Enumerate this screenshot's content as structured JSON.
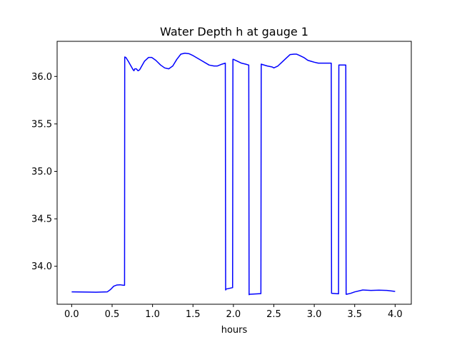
{
  "chart_data": {
    "type": "line",
    "title": "Water Depth h at gauge 1",
    "xlabel": "hours",
    "ylabel": "",
    "xlim": [
      -0.18,
      4.2
    ],
    "ylim": [
      33.6,
      36.37
    ],
    "xticks": [
      0.0,
      0.5,
      1.0,
      1.5,
      2.0,
      2.5,
      3.0,
      3.5,
      4.0
    ],
    "xtick_labels": [
      "0.0",
      "0.5",
      "1.0",
      "1.5",
      "2.0",
      "2.5",
      "3.0",
      "3.5",
      "4.0"
    ],
    "yticks": [
      34.0,
      34.5,
      35.0,
      35.5,
      36.0
    ],
    "ytick_labels": [
      "34.0",
      "34.5",
      "35.0",
      "35.5",
      "36.0"
    ],
    "grid": false,
    "series_color": "#0000ff",
    "series": [
      {
        "x": [
          0.0,
          0.3,
          0.44,
          0.48,
          0.52,
          0.56,
          0.6,
          0.64,
          0.654,
          0.656,
          0.67,
          0.7,
          0.74,
          0.76,
          0.77,
          0.78,
          0.8,
          0.82,
          0.84,
          0.86,
          0.9,
          0.95,
          0.99,
          1.04,
          1.1,
          1.15,
          1.2,
          1.25,
          1.3,
          1.35,
          1.4,
          1.45,
          1.5,
          1.6,
          1.7,
          1.76,
          1.8,
          1.86,
          1.9,
          1.904,
          1.91,
          1.99,
          1.994,
          2.0,
          2.05,
          2.1,
          2.15,
          2.19,
          2.194,
          2.2,
          2.3,
          2.34,
          2.344,
          2.36,
          2.42,
          2.48,
          2.5,
          2.55,
          2.6,
          2.65,
          2.7,
          2.75,
          2.78,
          2.82,
          2.87,
          2.92,
          2.96,
          3.0,
          3.05,
          3.1,
          3.15,
          3.2,
          3.21,
          3.214,
          3.3,
          3.304,
          3.39,
          3.394,
          3.4,
          3.45,
          3.5,
          3.6,
          3.7,
          3.8,
          3.9,
          4.0
        ],
        "y": [
          33.73,
          33.727,
          33.73,
          33.755,
          33.79,
          33.803,
          33.805,
          33.8,
          33.8,
          36.205,
          36.2,
          36.16,
          36.1,
          36.07,
          36.06,
          36.08,
          36.08,
          36.06,
          36.07,
          36.1,
          36.16,
          36.2,
          36.2,
          36.17,
          36.12,
          36.09,
          36.08,
          36.11,
          36.18,
          36.235,
          36.245,
          36.24,
          36.22,
          36.17,
          36.12,
          36.11,
          36.11,
          36.13,
          36.14,
          33.75,
          33.76,
          33.775,
          36.18,
          36.18,
          36.16,
          36.14,
          36.13,
          36.12,
          33.7,
          33.705,
          33.71,
          33.712,
          36.13,
          36.125,
          36.11,
          36.1,
          36.09,
          36.11,
          36.15,
          36.19,
          36.23,
          36.235,
          36.235,
          36.22,
          36.2,
          36.17,
          36.16,
          36.15,
          36.14,
          36.14,
          36.14,
          36.14,
          36.14,
          33.715,
          33.71,
          36.12,
          36.12,
          33.705,
          33.705,
          33.715,
          33.73,
          33.75,
          33.745,
          33.748,
          33.745,
          33.735
        ]
      }
    ]
  }
}
